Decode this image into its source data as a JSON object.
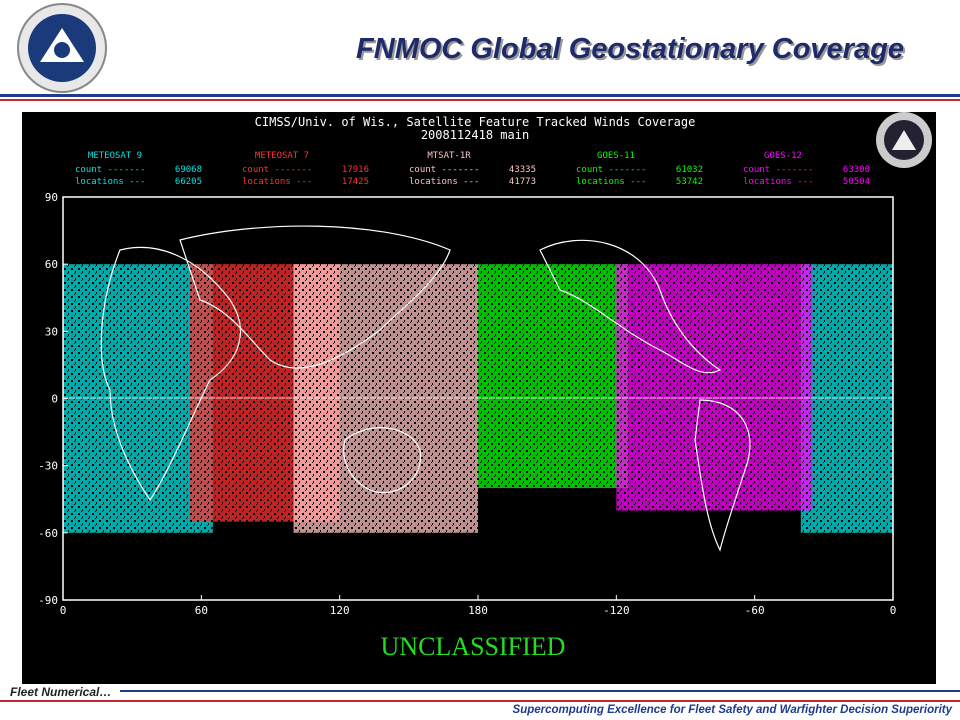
{
  "header": {
    "title": "FNMOC Global Geostationary Coverage"
  },
  "image": {
    "title": "CIMSS/Univ. of Wis., Satellite Feature Tracked Winds Coverage",
    "subtitle": "2008112418  main",
    "satellites": [
      {
        "name": "METEOSAT 9",
        "color": "#00e0e0",
        "count_label": "count -------",
        "count": "69068",
        "locations_label": "locations ---",
        "locations": "66205"
      },
      {
        "name": "METEOSAT 7",
        "color": "#ff3030",
        "count_label": "count -------",
        "count": "17916",
        "locations_label": "locations ---",
        "locations": "17425"
      },
      {
        "name": "MTSAT-1R",
        "color": "#ffc0c0",
        "count_label": "count -------",
        "count": "43335",
        "locations_label": "locations ---",
        "locations": "41773"
      },
      {
        "name": "GOES-11",
        "color": "#00ff00",
        "count_label": "count -------",
        "count": "61032",
        "locations_label": "locations ---",
        "locations": "53742"
      },
      {
        "name": "GOES-12",
        "color": "#ff00ff",
        "count_label": "count -------",
        "count": "63300",
        "locations_label": "locations ---",
        "locations": "50504"
      }
    ],
    "y_labels": [
      "90",
      "60",
      "30",
      "0",
      "-30",
      "-60",
      "-90"
    ],
    "x_labels": [
      "0",
      "60",
      "120",
      "180",
      "-120",
      "-60",
      "0"
    ],
    "classification": "UNCLASSIFIED"
  },
  "footer": {
    "left": "Fleet Numerical…",
    "right": "Supercomputing Excellence for Fleet Safety and Warfighter Decision Superiority"
  }
}
